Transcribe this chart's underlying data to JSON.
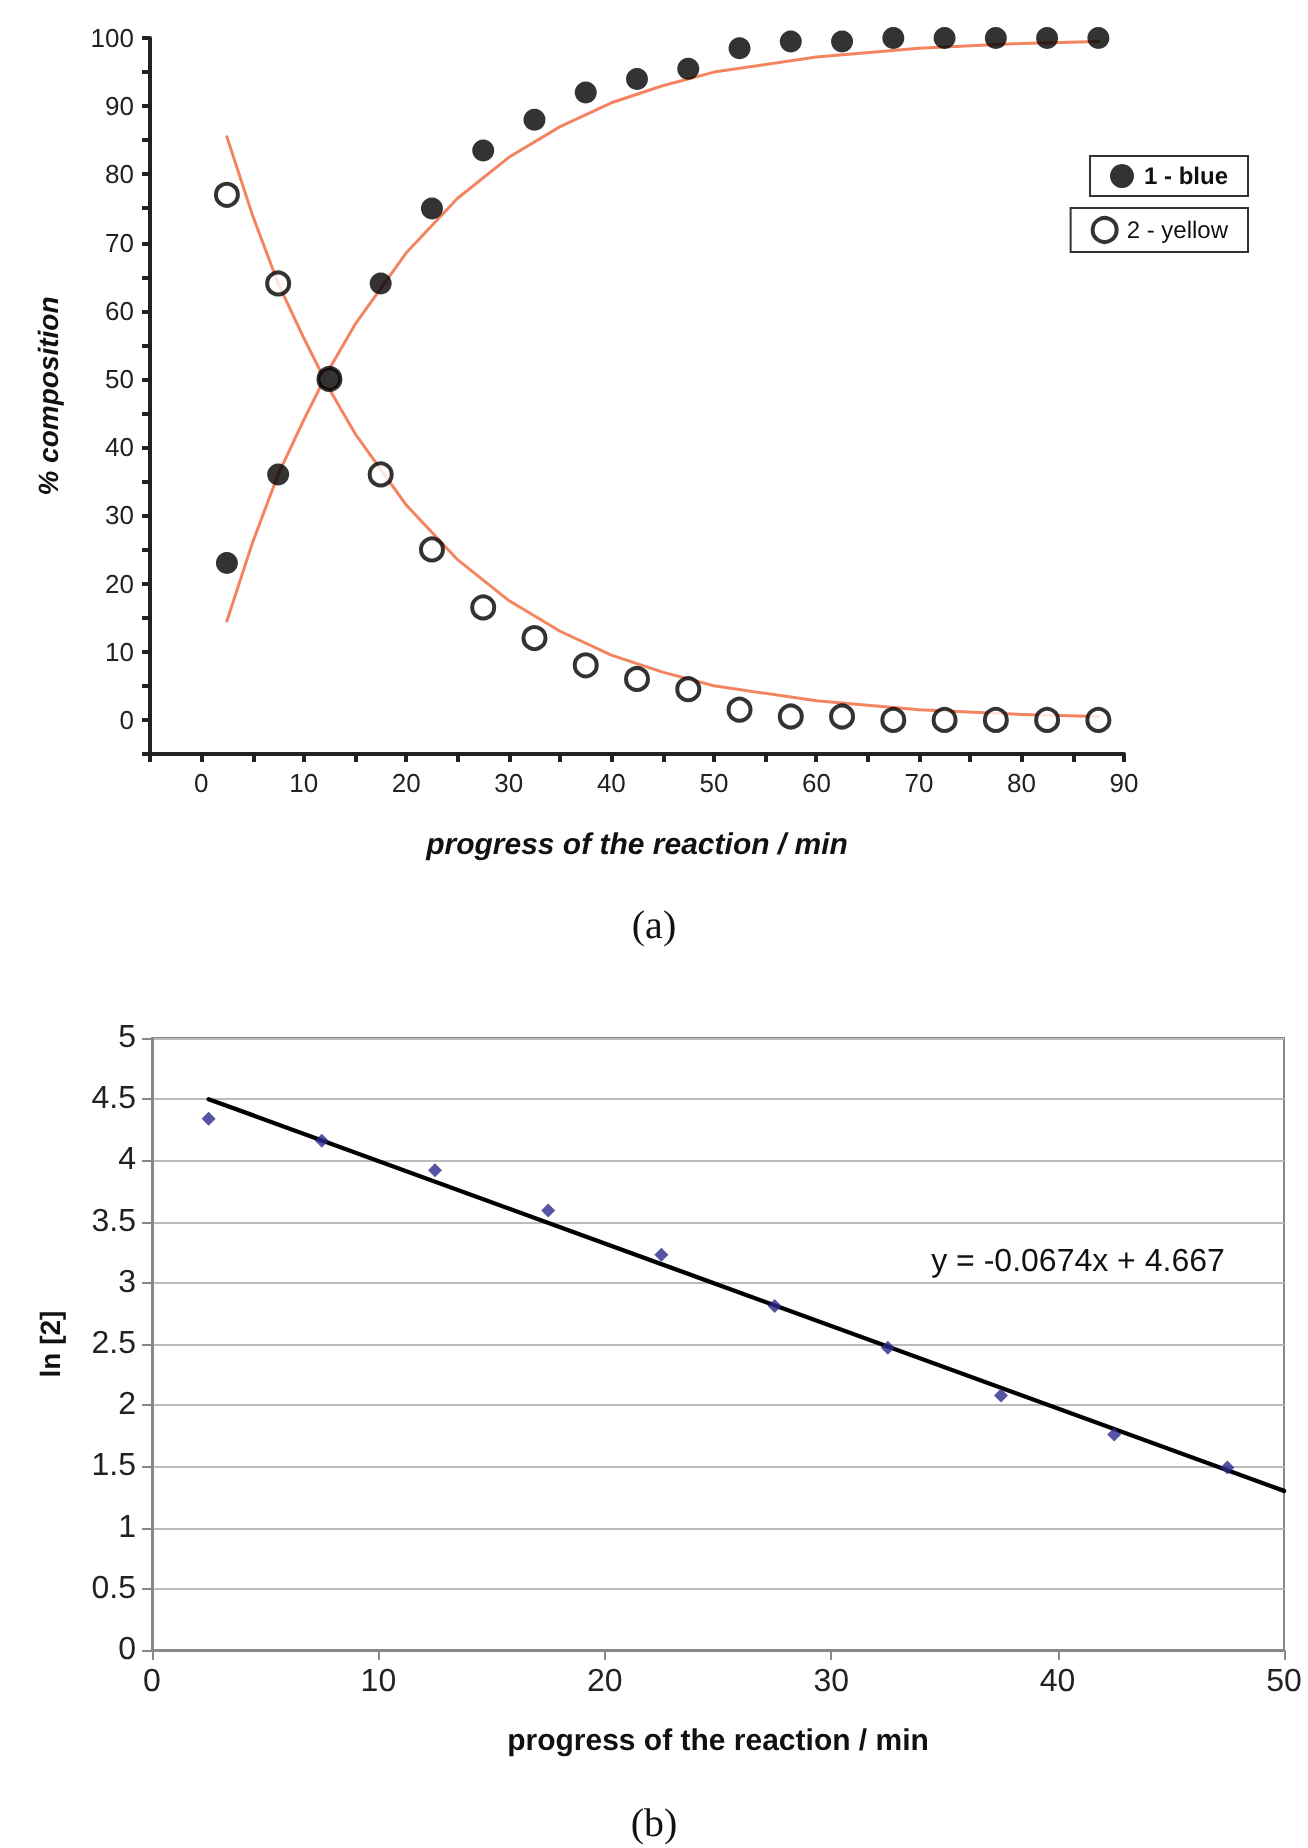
{
  "chart_data": [
    {
      "type": "scatter",
      "xlabel": "progress of the reaction / min",
      "ylabel": "% composition",
      "annotations": [
        "(a)"
      ],
      "x": [
        2.5,
        7.5,
        12.5,
        17.5,
        22.5,
        27.5,
        32.5,
        37.5,
        42.5,
        47.5,
        52.5,
        57.5,
        62.5,
        67.5,
        72.5,
        77.5,
        82.5,
        87.5
      ],
      "series": [
        {
          "name": "2 - yellow",
          "color": "#000000",
          "marker": "open circle",
          "values": [
            77,
            64,
            50,
            36,
            25,
            16.5,
            12,
            8,
            6,
            4.5,
            1.5,
            0.5,
            0.5,
            0,
            0,
            0,
            0,
            0
          ]
        },
        {
          "name": "1 - blue",
          "color": "#000000",
          "marker": "circle",
          "values": [
            23,
            36,
            50,
            64,
            75,
            83.5,
            88,
            92,
            94,
            95.5,
            98.5,
            99.5,
            99.5,
            100,
            100,
            100,
            100,
            100
          ]
        },
        {
          "type": "line",
          "color": "#f4845f",
          "marker": "none",
          "x": [
            2.5,
            5,
            7.5,
            10,
            12.5,
            15,
            20,
            25,
            30,
            35,
            40,
            45,
            50,
            60,
            70,
            80,
            87.5
          ],
          "values": [
            14.5,
            26,
            36,
            44,
            51.5,
            58,
            68.5,
            76.5,
            82.5,
            87,
            90.5,
            93,
            95,
            97.2,
            98.5,
            99.2,
            99.5
          ]
        },
        {
          "type": "line",
          "color": "#f4845f",
          "marker": "none",
          "x": [
            2.5,
            5,
            7.5,
            10,
            12.5,
            15,
            20,
            25,
            30,
            35,
            40,
            45,
            50,
            60,
            70,
            80,
            87.5
          ],
          "values": [
            85.5,
            74,
            64,
            56,
            48.5,
            42,
            31.5,
            23.5,
            17.5,
            13,
            9.5,
            7,
            5,
            2.8,
            1.5,
            0.8,
            0.5
          ]
        }
      ],
      "xlim": [
        -5,
        90
      ],
      "xticks": [
        {
          "value": -5,
          "label": null
        },
        0,
        {
          "value": 5,
          "label": null
        },
        10,
        {
          "value": 15,
          "label": null
        },
        20,
        {
          "value": 25,
          "label": null
        },
        30,
        {
          "value": 35,
          "label": null
        },
        40,
        {
          "value": 45,
          "label": null
        },
        50,
        {
          "value": 55,
          "label": null
        },
        60,
        {
          "value": 65,
          "label": null
        },
        70,
        {
          "value": 75,
          "label": null
        },
        80,
        {
          "value": 85,
          "label": null
        },
        90
      ],
      "ylim": [
        -5,
        100
      ],
      "yticks": [
        {
          "value": -5,
          "label": null
        },
        0,
        {
          "value": 5,
          "label": null
        },
        10,
        {
          "value": 15,
          "label": null
        },
        20,
        {
          "value": 25,
          "label": null
        },
        30,
        {
          "value": 35,
          "label": null
        },
        40,
        {
          "value": 45,
          "label": null
        },
        50,
        {
          "value": 55,
          "label": null
        },
        60,
        {
          "value": 65,
          "label": null
        },
        70,
        {
          "value": 75,
          "label": null
        },
        80,
        {
          "value": 85,
          "label": null
        },
        90,
        {
          "value": 95,
          "label": null
        },
        100
      ],
      "grid": false,
      "legend": "right",
      "line_style": "solid"
    },
    {
      "type": "scatter",
      "xlabel": "progress of the reaction / min",
      "ylabel": "ln [2]",
      "annotations": [
        "y = -0.0674x + 4.667",
        "(b)"
      ],
      "x": [
        2.5,
        7.5,
        12.5,
        17.5,
        22.5,
        27.5,
        32.5,
        37.5,
        42.5,
        47.5
      ],
      "series": [
        {
          "color": "#2b2b8c",
          "marker": "diamond",
          "values": [
            4.34,
            4.16,
            3.92,
            3.59,
            3.23,
            2.81,
            2.47,
            2.08,
            1.76,
            1.49
          ]
        },
        {
          "type": "line",
          "color": "#000000",
          "marker": "none",
          "x": [
            2.5,
            50
          ],
          "values": [
            4.5,
            1.3
          ]
        }
      ],
      "xlim": [
        0,
        50
      ],
      "xticks": [
        0,
        10,
        20,
        30,
        40,
        50
      ],
      "ylim": [
        0,
        5
      ],
      "yticks": [
        0,
        0.5,
        1,
        1.5,
        2,
        2.5,
        3,
        3.5,
        4,
        4.5,
        5
      ],
      "grid": "y",
      "line_style": "solid"
    }
  ]
}
